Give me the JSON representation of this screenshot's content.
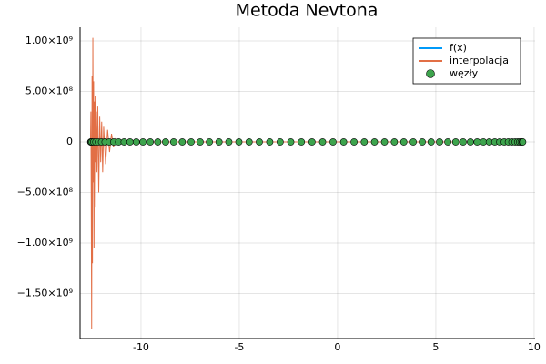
{
  "chart_data": {
    "type": "line",
    "title": "Metoda Nevtona",
    "xlim": [
      -13.1,
      10.05
    ],
    "xticks": [
      -10,
      -5,
      0,
      5,
      10
    ],
    "ylim": [
      -1946000000,
      1135000000
    ],
    "yticks": [
      {
        "value": -1500000000,
        "label": "−1.50×10⁹"
      },
      {
        "value": -1000000000,
        "label": "−1.00×10⁹"
      },
      {
        "value": -500000000,
        "label": "−5.00×10⁸"
      },
      0,
      {
        "value": 500000000,
        "label": "5.00×10⁸"
      },
      {
        "value": 1000000000,
        "label": "1.00×10⁹"
      }
    ],
    "grid": true,
    "legend": "top-right",
    "series": [
      {
        "name": "f(x)",
        "color": "#009af9",
        "mode": "line",
        "x": [
          -12.57,
          9.42
        ],
        "values": [
          0,
          0
        ]
      },
      {
        "name": "interpolacja",
        "color": "#e26f46",
        "mode": "line",
        "x": [
          -12.57,
          -12.55,
          -12.53,
          -12.51,
          -12.49,
          -12.47,
          -12.45,
          -12.43,
          -12.41,
          -12.39,
          -12.37,
          -12.35,
          -12.33,
          -12.3,
          -12.27,
          -12.24,
          -12.2,
          -12.15,
          -12.1,
          -12.05,
          -12.0,
          -11.95,
          -11.9,
          -11.8,
          -11.7,
          -11.6,
          -11.5,
          -11.4,
          -11.3,
          -11.1,
          -10.8,
          9.42
        ],
        "values": [
          0,
          300000000,
          -600000000,
          -1850000000,
          650000000,
          -1200000000,
          1030000000,
          -400000000,
          600000000,
          -1050000000,
          400000000,
          -200000000,
          450000000,
          -650000000,
          300000000,
          -300000000,
          350000000,
          -500000000,
          250000000,
          -200000000,
          200000000,
          -300000000,
          150000000,
          -220000000,
          120000000,
          -100000000,
          80000000,
          -50000000,
          30000000,
          -10000000,
          0,
          0
        ]
      },
      {
        "name": "węzły",
        "color": "#3da44d",
        "mode": "scatter",
        "x": [
          -12.56,
          -12.54,
          -12.49,
          -12.41,
          -12.3,
          -12.17,
          -12.01,
          -11.83,
          -11.62,
          -11.39,
          -11.14,
          -10.86,
          -10.56,
          -10.24,
          -9.9,
          -9.53,
          -9.15,
          -8.75,
          -8.34,
          -7.9,
          -7.45,
          -6.99,
          -6.52,
          -6.03,
          -5.53,
          -5.02,
          -4.5,
          -3.98,
          -3.45,
          -2.92,
          -2.38,
          -1.84,
          -1.3,
          -0.76,
          -0.23,
          0.31,
          0.84,
          1.36,
          1.88,
          2.39,
          2.89,
          3.37,
          3.85,
          4.31,
          4.76,
          5.19,
          5.61,
          6.01,
          6.39,
          6.76,
          7.1,
          7.42,
          7.72,
          8.0,
          8.25,
          8.48,
          8.69,
          8.87,
          9.03,
          9.16,
          9.26,
          9.34,
          9.4,
          9.42
        ],
        "values": [
          0,
          0,
          0,
          0,
          0,
          0,
          0,
          0,
          0,
          0,
          0,
          0,
          0,
          0,
          0,
          0,
          0,
          0,
          0,
          0,
          0,
          0,
          0,
          0,
          0,
          0,
          0,
          0,
          0,
          0,
          0,
          0,
          0,
          0,
          0,
          0,
          0,
          0,
          0,
          0,
          0,
          0,
          0,
          0,
          0,
          0,
          0,
          0,
          0,
          0,
          0,
          0,
          0,
          0,
          0,
          0,
          0,
          0,
          0,
          0,
          0,
          0,
          0,
          0
        ]
      }
    ]
  }
}
